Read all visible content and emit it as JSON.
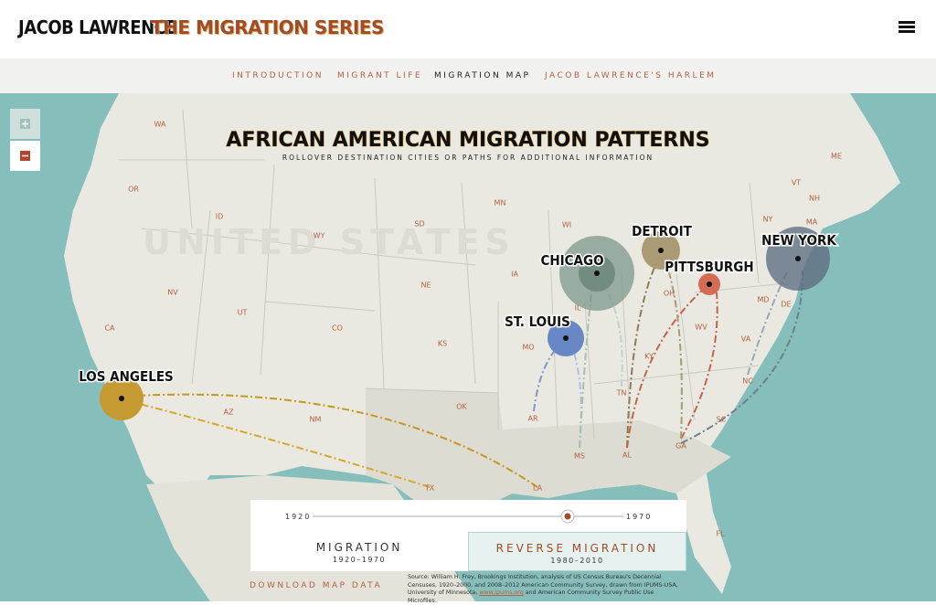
{
  "header": {
    "title": "JACOB LAWRENCE",
    "subtitle": "THE MIGRATION SERIES"
  },
  "nav": [
    "INTRODUCTION",
    "MIGRANT LIFE",
    "MIGRATION MAP",
    "JACOB LAWRENCE'S HARLEM"
  ],
  "map": {
    "title": "AFRICAN AMERICAN MIGRATION PATTERNS",
    "subtitle": "ROLLOVER DESTINATION CITIES OR PATHS FOR ADDITIONAL INFORMATION",
    "country": "UNITED STATES",
    "states": [
      "WA",
      "OR",
      "ID",
      "CA",
      "NV",
      "UT",
      "AZ",
      "WY",
      "CO",
      "NM",
      "SD",
      "NE",
      "KS",
      "OK",
      "TX",
      "MN",
      "IA",
      "MO",
      "AR",
      "LA",
      "WI",
      "IL",
      "MS",
      "AL",
      "TN",
      "KY",
      "OH",
      "WV",
      "VA",
      "NC",
      "SC",
      "GA",
      "FL",
      "NY",
      "VT",
      "NH",
      "ME",
      "MA",
      "MD",
      "DE"
    ],
    "cities": [
      "LOS ANGELES",
      "CHICAGO",
      "DETROIT",
      "PITTSBURGH",
      "NEW YORK",
      "ST. LOUIS"
    ]
  },
  "timeline": {
    "start": "1920",
    "end": "1970"
  },
  "tabs": [
    {
      "label": "MIGRATION",
      "years": "1920–1970"
    },
    {
      "label": "REVERSE MIGRATION",
      "years": "1980–2010"
    }
  ],
  "download": "DOWNLOAD MAP DATA",
  "source": {
    "text": "Source: William H. Frey, Brookings Institution, analysis of US Census Bureau's Decennial Censuses, 1920–2000, and 2008–2012 American Community Survey, drawn from IPUMS-USA, University of Minnesota,",
    "link": "www.ipums.org",
    "after": "and American Community Survey Public Use Microfiles."
  }
}
